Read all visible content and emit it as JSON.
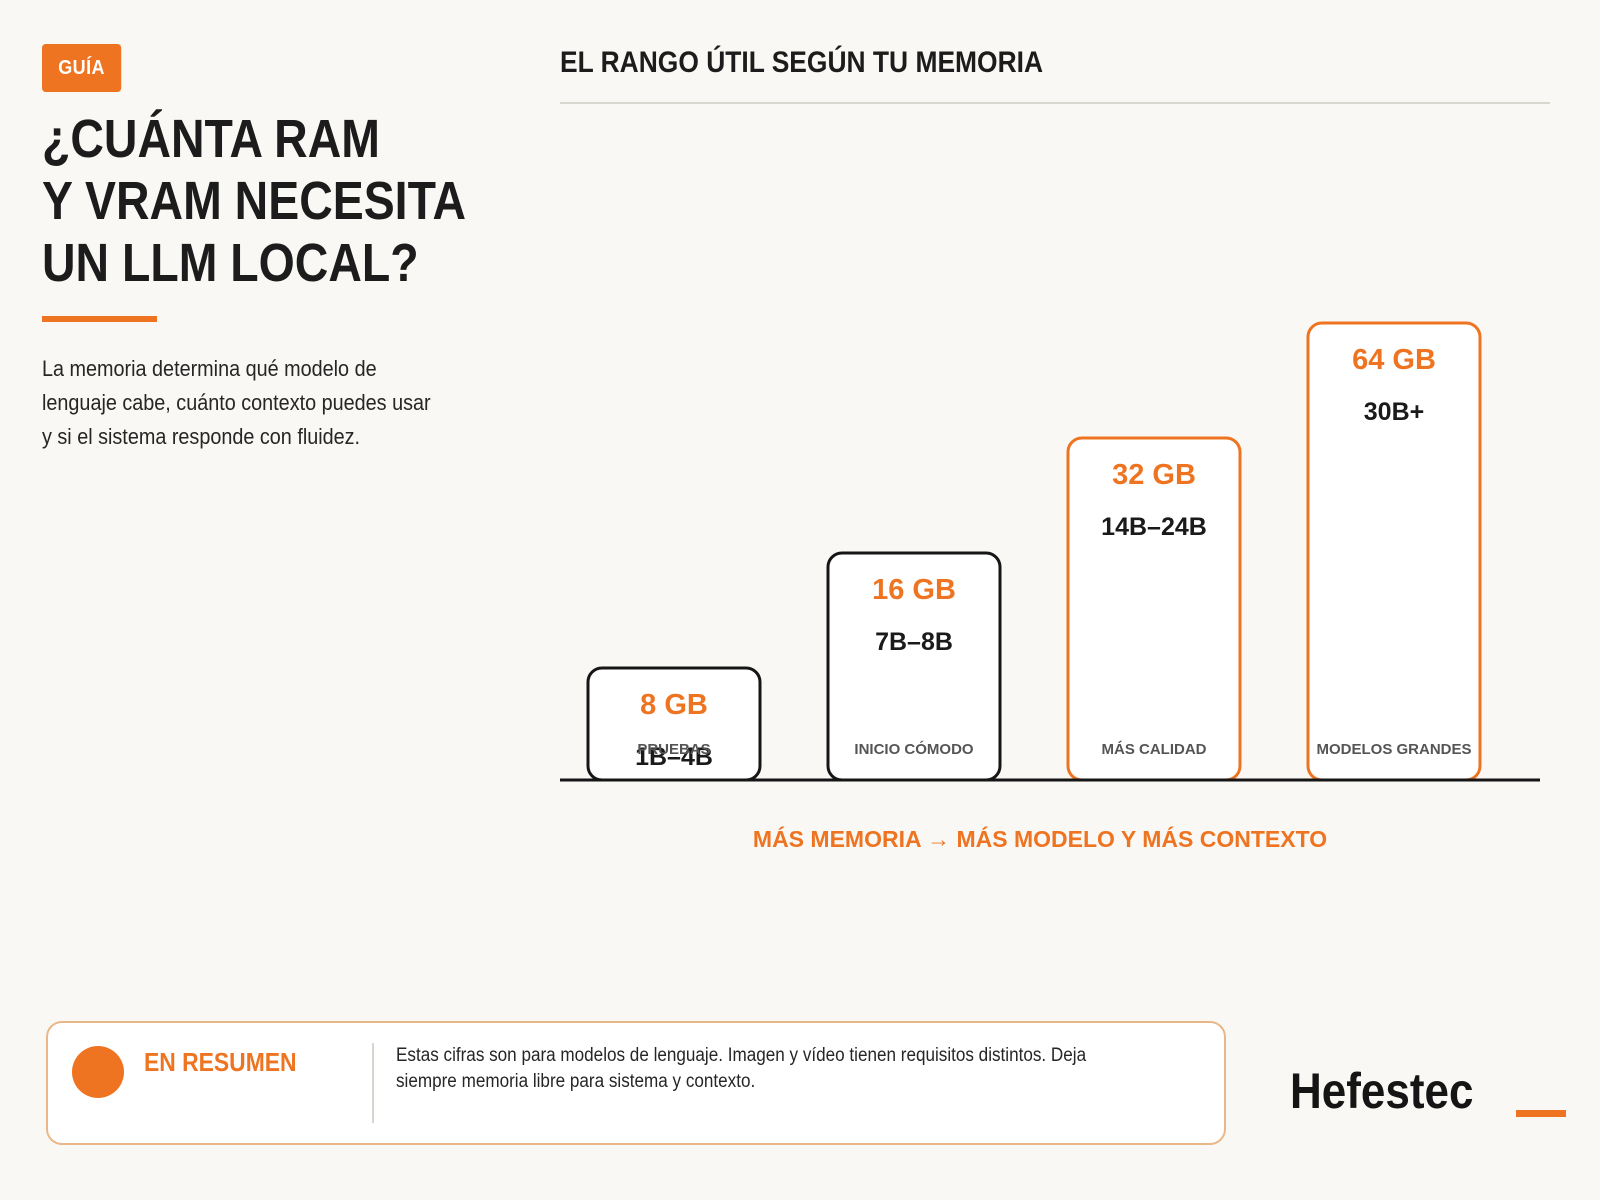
{
  "header": {
    "tag": "GUÍA",
    "title_lines": [
      "¿CUÁNTA RAM",
      "Y VRAM NECESITA",
      "UN LLM LOCAL?"
    ],
    "lead": "La memoria determina qué modelo de lenguaje cabe, cuánto contexto puedes usar y si el sistema responde con fluidez."
  },
  "chart_data": {
    "type": "bar",
    "title": "EL RANGO ÚTIL SEGÚN TU MEMORIA",
    "categories": [
      "8 GB",
      "16 GB",
      "32 GB",
      "64 GB"
    ],
    "memory_gb": [
      8,
      16,
      32,
      64
    ],
    "model_ranges": [
      "1B–4B",
      "7B–8B",
      "14B–24B",
      "30B+"
    ],
    "tier_labels": [
      "PRUEBAS",
      "INICIO CÓMODO",
      "MÁS CALIDAD",
      "MODELOS GRANDES"
    ],
    "levels": [
      1,
      2,
      3,
      4
    ],
    "highlighted": [
      false,
      false,
      true,
      true
    ],
    "colors": {
      "accent": "#ee7421",
      "dark": "#161616",
      "tier_text": "#555555"
    }
  },
  "tagline": "MÁS MEMORIA → MÁS MODELO Y MÁS CONTEXTO",
  "summary": {
    "label": "EN RESUMEN",
    "text": "Estas cifras son para modelos de lenguaje. Imagen y vídeo tienen requisitos distintos. Deja siempre memoria libre para sistema y contexto."
  },
  "brand": {
    "name": "Hefestec"
  }
}
